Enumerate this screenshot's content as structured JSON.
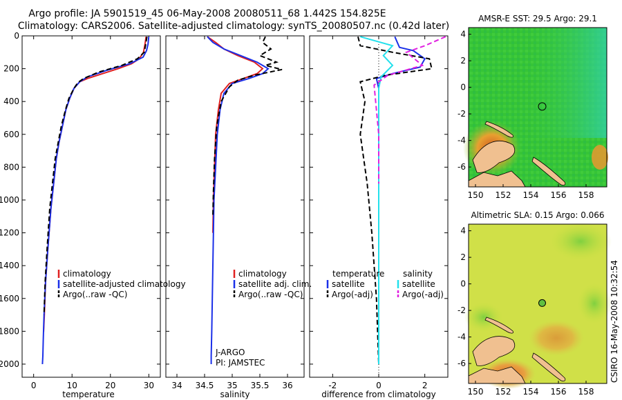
{
  "header": {
    "line1": "Argo profile: JA 5901519_45 06-May-2008 20080511_68 1.442S 154.825E",
    "line2": "Climatology: CARS2006. Satellite-adjusted climatology: synTS_20080507.nc (0.42d later)"
  },
  "side_stamp": "CSIRO 16-May-2008 10:32:54",
  "colors": {
    "climatology": "#e02020",
    "satellite": "#1a2fe8",
    "argo": "#000000",
    "sat_salinity": "#22e0ec",
    "argo_adj_salinity": "#e020e0",
    "sst_map": "#3cc83c",
    "sla_map": "#c8e040",
    "land": "#f0c090"
  },
  "chart_data": [
    {
      "id": "temperature",
      "type": "line",
      "xlabel": "temperature",
      "ylabel": "",
      "xlim": [
        -3,
        33
      ],
      "ylim": [
        2080,
        0
      ],
      "y_inverted": true,
      "xticks": [
        0,
        10,
        20,
        30
      ],
      "yticks": [
        0,
        200,
        400,
        600,
        800,
        1000,
        1200,
        1400,
        1600,
        1800,
        2000
      ],
      "legend": {
        "position": "lower-right",
        "entries": [
          "climatology",
          "satellite-adjusted climatology",
          "Argo(..raw -QC)"
        ]
      },
      "series": [
        {
          "name": "climatology",
          "style": "solid",
          "color": "#e02020",
          "x": [
            29.3,
            29.0,
            28.6,
            27.5,
            25.5,
            22.0,
            18.0,
            14.0,
            12.0,
            10.5,
            9.4,
            8.4,
            7.5,
            6.6,
            5.9,
            5.2,
            4.5,
            3.7,
            3.1,
            2.8,
            2.6,
            2.5
          ],
          "y": [
            5,
            50,
            100,
            140,
            170,
            200,
            230,
            260,
            280,
            320,
            380,
            450,
            550,
            650,
            750,
            900,
            1050,
            1300,
            1500,
            1700,
            1800,
            1800
          ]
        },
        {
          "name": "satellite-adjusted climatology",
          "style": "solid",
          "color": "#1a2fe8",
          "x": [
            30.0,
            29.8,
            29.4,
            28.5,
            25.0,
            19.0,
            14.0,
            12.0,
            10.5,
            9.4,
            8.4,
            7.5,
            6.6,
            5.9,
            5.2,
            4.5,
            3.7,
            3.1,
            2.7,
            2.5,
            2.4,
            2.3
          ],
          "y": [
            5,
            50,
            90,
            130,
            170,
            210,
            250,
            280,
            320,
            380,
            450,
            550,
            650,
            750,
            900,
            1050,
            1300,
            1500,
            1700,
            1850,
            1950,
            2000
          ]
        },
        {
          "name": "Argo(..raw -QC)",
          "style": "dashed",
          "color": "#000000",
          "x": [
            29.5,
            29.2,
            28.8,
            27.0,
            23.0,
            17.0,
            13.0,
            11.5,
            10.5,
            9.2,
            8.3,
            7.2,
            6.4,
            5.6,
            4.9,
            4.2,
            3.5,
            3.0,
            2.7
          ],
          "y": [
            5,
            50,
            100,
            140,
            180,
            220,
            260,
            285,
            320,
            380,
            450,
            550,
            650,
            750,
            900,
            1050,
            1300,
            1500,
            1700
          ]
        }
      ]
    },
    {
      "id": "salinity",
      "type": "line",
      "xlabel": "salinity",
      "xlim": [
        33.8,
        36.3
      ],
      "ylim": [
        2080,
        0
      ],
      "y_inverted": true,
      "xticks": [
        34,
        34.5,
        35,
        35.5,
        36
      ],
      "legend": {
        "position": "lower-right",
        "entries": [
          "climatology",
          "satellite adj. clim.",
          "Argo(..raw -QC)"
        ]
      },
      "annotations": [
        "J-ARGO",
        "PI: JAMSTEC"
      ],
      "series": [
        {
          "name": "climatology",
          "style": "solid",
          "color": "#e02020",
          "x": [
            34.55,
            34.7,
            34.85,
            35.1,
            35.4,
            35.55,
            35.45,
            35.2,
            34.95,
            34.8,
            34.75,
            34.7,
            34.68,
            34.66,
            34.65
          ],
          "y": [
            5,
            40,
            80,
            120,
            160,
            200,
            230,
            260,
            290,
            350,
            450,
            600,
            800,
            1000,
            1200
          ]
        },
        {
          "name": "satellite adj. clim.",
          "style": "solid",
          "color": "#1a2fe8",
          "x": [
            34.55,
            34.65,
            34.85,
            35.15,
            35.45,
            35.65,
            35.55,
            35.3,
            35.0,
            34.85,
            34.78,
            34.73,
            34.7,
            34.67,
            34.66,
            34.65,
            34.64,
            34.63,
            34.62,
            34.62
          ],
          "y": [
            5,
            40,
            80,
            120,
            160,
            200,
            230,
            260,
            290,
            350,
            450,
            600,
            800,
            1000,
            1200,
            1400,
            1600,
            1800,
            1950,
            2000
          ]
        },
        {
          "name": "Argo(..raw -QC)",
          "style": "dashed",
          "color": "#000000",
          "x": [
            35.6,
            35.55,
            35.7,
            35.5,
            35.8,
            35.6,
            35.9,
            35.4,
            35.1,
            34.95,
            34.8,
            34.72,
            34.68,
            34.66,
            34.65
          ],
          "y": [
            5,
            40,
            80,
            120,
            160,
            180,
            205,
            240,
            270,
            310,
            400,
            550,
            750,
            950,
            1100
          ]
        }
      ]
    },
    {
      "id": "difference",
      "type": "line",
      "xlabel": "difference from climatology",
      "xlim": [
        -3,
        3
      ],
      "ylim": [
        2080,
        0
      ],
      "y_inverted": true,
      "xticks": [
        -2,
        0,
        2
      ],
      "legend": {
        "position": "lower-center",
        "columns": [
          {
            "heading": "temperature",
            "entries": [
              "satellite",
              "Argo(-adj)"
            ]
          },
          {
            "heading": "salinity",
            "entries": [
              "satellite",
              "Argo(-adj)"
            ]
          }
        ]
      },
      "series": [
        {
          "name": "temperature satellite",
          "style": "solid",
          "color": "#1a2fe8",
          "x": [
            0.7,
            0.9,
            1.5,
            2.0,
            1.8,
            0.6,
            -0.1,
            0.0,
            0.0,
            0.0,
            0.0
          ],
          "y": [
            5,
            70,
            90,
            140,
            190,
            230,
            260,
            320,
            500,
            1200,
            2000
          ]
        },
        {
          "name": "temperature Argo(-adj)",
          "style": "dashed",
          "color": "#000000",
          "x": [
            -0.9,
            -0.8,
            0.6,
            2.2,
            2.3,
            0.3,
            -0.8,
            -0.6,
            -0.8,
            -0.5,
            -0.3,
            -0.1,
            0.0
          ],
          "y": [
            5,
            60,
            100,
            140,
            200,
            240,
            280,
            400,
            600,
            900,
            1200,
            1600,
            2000
          ]
        },
        {
          "name": "salinity satellite",
          "style": "solid",
          "color": "#22e0ec",
          "x": [
            -0.8,
            0.6,
            0.2,
            0.6,
            0.1,
            0.0,
            0.0,
            0.0
          ],
          "y": [
            5,
            60,
            120,
            180,
            250,
            320,
            1000,
            2000
          ]
        },
        {
          "name": "salinity Argo(-adj)",
          "style": "dashed",
          "color": "#e020e0",
          "x": [
            2.9,
            2.0,
            1.2,
            1.9,
            0.4,
            -0.2,
            0.0,
            0.0
          ],
          "y": [
            5,
            60,
            100,
            180,
            240,
            300,
            600,
            900
          ]
        }
      ]
    },
    {
      "id": "sst_map",
      "type": "heatmap",
      "title": "AMSR-E SST: 29.5 Argo: 29.1",
      "xlim": [
        149.5,
        159.5
      ],
      "ylim": [
        -7.5,
        4.5
      ],
      "xticks": [
        150,
        152,
        154,
        156,
        158
      ],
      "yticks": [
        4,
        2,
        0,
        -2,
        -4,
        -6
      ],
      "argo_position": {
        "lon": 154.825,
        "lat": -1.442
      },
      "colormap": "green-to-teal with warm patch near PNG"
    },
    {
      "id": "sla_map",
      "type": "heatmap",
      "title": "Altimetric SLA: 0.15 Argo: 0.066",
      "xlim": [
        149.5,
        159.5
      ],
      "ylim": [
        -7.5,
        4.5
      ],
      "xticks": [
        150,
        152,
        154,
        156,
        158
      ],
      "yticks": [
        4,
        2,
        0,
        -2,
        -4,
        -6
      ],
      "argo_position": {
        "lon": 154.825,
        "lat": -1.442
      },
      "colormap": "yellow-green with orange patch south"
    }
  ]
}
